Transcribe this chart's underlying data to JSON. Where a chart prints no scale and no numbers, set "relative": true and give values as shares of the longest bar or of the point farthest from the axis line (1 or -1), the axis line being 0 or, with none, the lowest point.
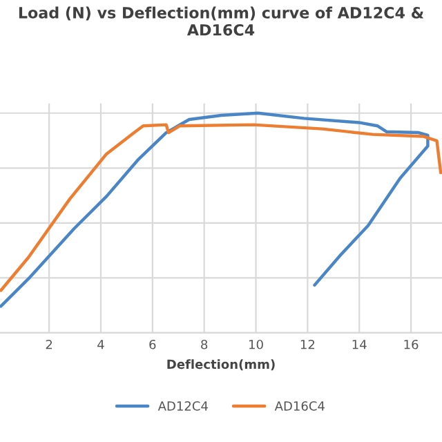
{
  "chart_data": {
    "type": "line",
    "title": "Load (N) vs Deflection(mm) curve of AD12C4 &\nAD16C4",
    "xlabel": "Deflection(mm)",
    "relative": true,
    "xlim": [
      0.1,
      17.2
    ],
    "xticks": [
      2,
      4,
      6,
      8,
      10,
      12,
      14,
      16
    ],
    "tick_labels": "x",
    "grid": true,
    "legend": "bottom",
    "marker": "none",
    "line_style": "solid",
    "series": [
      {
        "name": "AD12C4",
        "color": "#4a86c5",
        "x": [
          0.135,
          1.2,
          2.98,
          4.22,
          5.46,
          6.53,
          7.42,
          8.66,
          10.08,
          11.86,
          13.99,
          14.7,
          15.06,
          16.3,
          16.65,
          16.65,
          15.59,
          14.34,
          13.28,
          12.27
        ],
        "values": [
          0.121,
          0.246,
          0.476,
          0.621,
          0.79,
          0.911,
          0.971,
          0.99,
          1.0,
          0.976,
          0.957,
          0.942,
          0.915,
          0.911,
          0.899,
          0.85,
          0.705,
          0.488,
          0.355,
          0.217
        ]
      },
      {
        "name": "AD16C4",
        "color": "#ed7d31",
        "x": [
          0.135,
          1.2,
          2.8,
          4.22,
          5.29,
          5.64,
          6.53,
          6.62,
          7.06,
          9.9,
          12.57,
          14.52,
          16.47,
          17.0,
          17.15
        ],
        "values": [
          0.193,
          0.343,
          0.609,
          0.814,
          0.911,
          0.942,
          0.947,
          0.911,
          0.942,
          0.947,
          0.928,
          0.903,
          0.894,
          0.874,
          0.729
        ]
      }
    ]
  }
}
